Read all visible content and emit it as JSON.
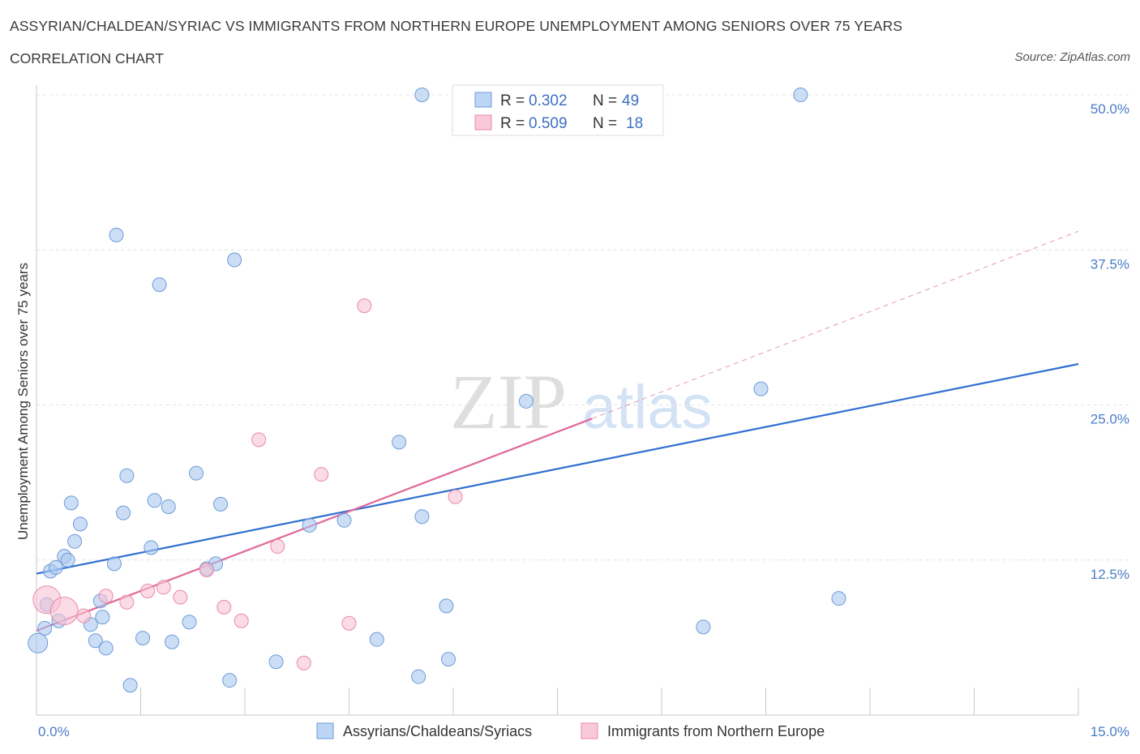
{
  "header": {
    "title": "ASSYRIAN/CHALDEAN/SYRIAC VS IMMIGRANTS FROM NORTHERN EUROPE UNEMPLOYMENT AMONG SENIORS OVER 75 YEARS",
    "subtitle": "CORRELATION CHART",
    "source": "Source: ZipAtlas.com"
  },
  "watermark": {
    "zip": "ZIP",
    "atlas": "atlas"
  },
  "legend": {
    "r_label": "R =",
    "n_label": "N =",
    "series1": {
      "r": "0.302",
      "n": "49"
    },
    "series2": {
      "r": "0.509",
      "n": "18"
    }
  },
  "chart_data": {
    "type": "scatter",
    "title": "ASSYRIAN/CHALDEAN/SYRIAC VS IMMIGRANTS FROM NORTHERN EUROPE UNEMPLOYMENT AMONG SENIORS OVER 75 YEARS",
    "xlabel": "",
    "ylabel": "Unemployment Among Seniors over 75 years",
    "xlim": [
      0,
      15
    ],
    "ylim": [
      0,
      50
    ],
    "x_tick_labels": {
      "min": "0.0%",
      "max": "15.0%"
    },
    "y_ticks": [
      {
        "value": 12.5,
        "label": "12.5%"
      },
      {
        "value": 25,
        "label": "25.0%"
      },
      {
        "value": 37.5,
        "label": "37.5%"
      },
      {
        "value": 50,
        "label": "50.0%"
      }
    ],
    "grid": true,
    "legend_position": "top-center",
    "series": [
      {
        "name": "Assyrians/Chaldeans/Syriacs",
        "color": "#a9c8f0",
        "stroke": "#6d9bd8",
        "line_color": "#2f6fcf",
        "r": 0.302,
        "n": 49,
        "trend": {
          "x0": 0,
          "y0": 11.4,
          "x1": 15,
          "y1": 28.3
        },
        "points": [
          {
            "x": 0.02,
            "y": 5.8,
            "big": true
          },
          {
            "x": 0.12,
            "y": 7.0
          },
          {
            "x": 0.15,
            "y": 8.9
          },
          {
            "x": 0.2,
            "y": 11.6
          },
          {
            "x": 0.28,
            "y": 11.9
          },
          {
            "x": 0.32,
            "y": 7.6
          },
          {
            "x": 0.4,
            "y": 12.8
          },
          {
            "x": 0.45,
            "y": 12.5
          },
          {
            "x": 0.5,
            "y": 17.1
          },
          {
            "x": 0.55,
            "y": 14.0
          },
          {
            "x": 0.63,
            "y": 15.4
          },
          {
            "x": 0.78,
            "y": 7.3
          },
          {
            "x": 0.85,
            "y": 6.0
          },
          {
            "x": 0.92,
            "y": 9.2
          },
          {
            "x": 0.95,
            "y": 7.9
          },
          {
            "x": 1.0,
            "y": 5.4
          },
          {
            "x": 1.12,
            "y": 12.2
          },
          {
            "x": 1.15,
            "y": 38.7
          },
          {
            "x": 1.25,
            "y": 16.3
          },
          {
            "x": 1.3,
            "y": 19.3
          },
          {
            "x": 1.35,
            "y": 2.4
          },
          {
            "x": 1.53,
            "y": 6.2
          },
          {
            "x": 1.65,
            "y": 13.5
          },
          {
            "x": 1.7,
            "y": 17.3
          },
          {
            "x": 1.77,
            "y": 34.7
          },
          {
            "x": 1.9,
            "y": 16.8
          },
          {
            "x": 1.95,
            "y": 5.9
          },
          {
            "x": 2.2,
            "y": 7.5
          },
          {
            "x": 2.3,
            "y": 19.5
          },
          {
            "x": 2.45,
            "y": 11.8
          },
          {
            "x": 2.58,
            "y": 12.2
          },
          {
            "x": 2.65,
            "y": 17.0
          },
          {
            "x": 2.78,
            "y": 2.8
          },
          {
            "x": 2.85,
            "y": 36.7
          },
          {
            "x": 3.45,
            "y": 4.3
          },
          {
            "x": 3.93,
            "y": 15.3
          },
          {
            "x": 4.43,
            "y": 15.7
          },
          {
            "x": 4.9,
            "y": 6.1
          },
          {
            "x": 5.22,
            "y": 22.0
          },
          {
            "x": 5.5,
            "y": 3.1
          },
          {
            "x": 5.55,
            "y": 50.0
          },
          {
            "x": 5.55,
            "y": 16.0
          },
          {
            "x": 5.9,
            "y": 8.8
          },
          {
            "x": 5.93,
            "y": 4.5
          },
          {
            "x": 7.05,
            "y": 25.3
          },
          {
            "x": 9.6,
            "y": 7.1
          },
          {
            "x": 10.43,
            "y": 26.3
          },
          {
            "x": 11.0,
            "y": 50.0
          },
          {
            "x": 11.55,
            "y": 9.4
          }
        ]
      },
      {
        "name": "Immigrants from Northern Europe",
        "color": "#f8c3d3",
        "stroke": "#e88aa8",
        "line_color": "#e0689a",
        "r": 0.509,
        "n": 18,
        "trend": {
          "x0": 0,
          "y0": 6.8,
          "x1": 8.0,
          "y1": 23.9
        },
        "trend_dashed": {
          "x0": 8.0,
          "y0": 23.9,
          "x1": 15,
          "y1": 39.0
        },
        "points": [
          {
            "x": 0.15,
            "y": 9.3,
            "big": true
          },
          {
            "x": 0.4,
            "y": 8.4,
            "big": true
          },
          {
            "x": 0.68,
            "y": 8.0
          },
          {
            "x": 1.0,
            "y": 9.6
          },
          {
            "x": 1.3,
            "y": 9.1
          },
          {
            "x": 1.6,
            "y": 10.0
          },
          {
            "x": 1.83,
            "y": 10.3
          },
          {
            "x": 2.07,
            "y": 9.5
          },
          {
            "x": 2.45,
            "y": 11.7
          },
          {
            "x": 2.7,
            "y": 8.7
          },
          {
            "x": 2.95,
            "y": 7.6
          },
          {
            "x": 3.2,
            "y": 22.2
          },
          {
            "x": 3.47,
            "y": 13.6
          },
          {
            "x": 3.85,
            "y": 4.2
          },
          {
            "x": 4.1,
            "y": 19.4
          },
          {
            "x": 4.5,
            "y": 7.4
          },
          {
            "x": 4.72,
            "y": 33.0
          },
          {
            "x": 6.03,
            "y": 17.6
          }
        ]
      }
    ]
  }
}
